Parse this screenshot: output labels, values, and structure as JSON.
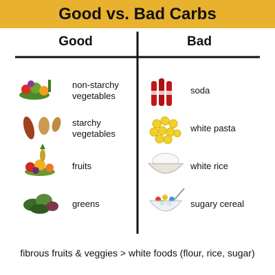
{
  "header": {
    "title": "Good vs. Bad Carbs"
  },
  "columns": [
    {
      "heading": "Good",
      "items": [
        "non-starchy vegetables",
        "starchy vegetables",
        "fruits",
        "greens"
      ]
    },
    {
      "heading": "Bad",
      "items": [
        "soda",
        "white pasta",
        "white rice",
        "sugary cereal"
      ]
    }
  ],
  "footer": "fibrous fruits & veggies > white foods (flour, rice, sugar)"
}
